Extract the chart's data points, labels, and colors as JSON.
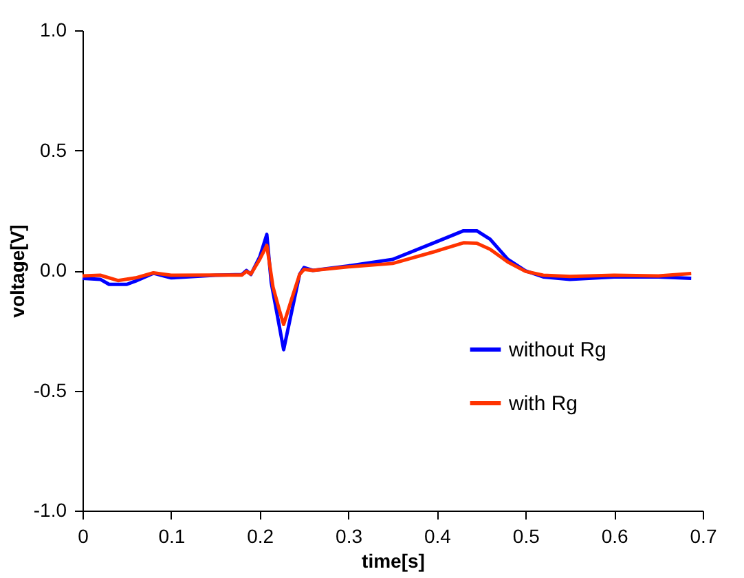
{
  "chart_data": {
    "type": "line",
    "xlabel": "time[s]",
    "ylabel": "voltage[V]",
    "xlim": [
      0,
      0.7
    ],
    "ylim": [
      -1,
      1
    ],
    "xticks": [
      0,
      0.1,
      0.2,
      0.3,
      0.4,
      0.5,
      0.6,
      0.7
    ],
    "yticks": [
      {
        "value": -1,
        "label": "-1.0"
      },
      {
        "value": -0.5,
        "label": "-0.5"
      },
      {
        "value": 0,
        "label": "0.0"
      },
      {
        "value": 0.5,
        "label": "0.5"
      },
      {
        "value": 1,
        "label": "1.0"
      }
    ],
    "grid": false,
    "legend": "bottom right",
    "marker": "none",
    "line_style": "solid",
    "series": [
      {
        "name": "without Rg",
        "color": "#0000ff",
        "x": [
          0,
          0.02,
          0.03,
          0.05,
          0.06,
          0.08,
          0.1,
          0.15,
          0.18,
          0.185,
          0.19,
          0.2,
          0.208,
          0.213,
          0.22,
          0.227,
          0.235,
          0.245,
          0.25,
          0.26,
          0.3,
          0.35,
          0.4,
          0.43,
          0.445,
          0.46,
          0.48,
          0.5,
          0.52,
          0.55,
          0.6,
          0.65,
          0.687
        ],
        "values": [
          -0.033,
          -0.037,
          -0.058,
          -0.058,
          -0.044,
          -0.012,
          -0.031,
          -0.02,
          -0.017,
          0,
          -0.017,
          0.056,
          0.15,
          -0.05,
          -0.19,
          -0.33,
          -0.19,
          -0.017,
          0.012,
          0,
          0.019,
          0.046,
          0.12,
          0.165,
          0.165,
          0.13,
          0.046,
          -0.002,
          -0.027,
          -0.037,
          -0.027,
          -0.027,
          -0.033
        ]
      },
      {
        "name": "with Rg",
        "color": "#ff3300",
        "x": [
          0,
          0.02,
          0.04,
          0.06,
          0.08,
          0.1,
          0.15,
          0.18,
          0.185,
          0.19,
          0.2,
          0.208,
          0.215,
          0.222,
          0.227,
          0.235,
          0.245,
          0.25,
          0.26,
          0.3,
          0.35,
          0.4,
          0.43,
          0.445,
          0.46,
          0.48,
          0.5,
          0.52,
          0.55,
          0.6,
          0.65,
          0.687
        ],
        "values": [
          -0.023,
          -0.02,
          -0.042,
          -0.031,
          -0.01,
          -0.02,
          -0.019,
          -0.019,
          -0.004,
          -0.015,
          0.046,
          0.104,
          -0.069,
          -0.163,
          -0.225,
          -0.131,
          -0.017,
          0.004,
          0,
          0.015,
          0.029,
          0.081,
          0.115,
          0.113,
          0.088,
          0.035,
          -0.004,
          -0.02,
          -0.025,
          -0.02,
          -0.023,
          -0.013
        ]
      }
    ]
  }
}
